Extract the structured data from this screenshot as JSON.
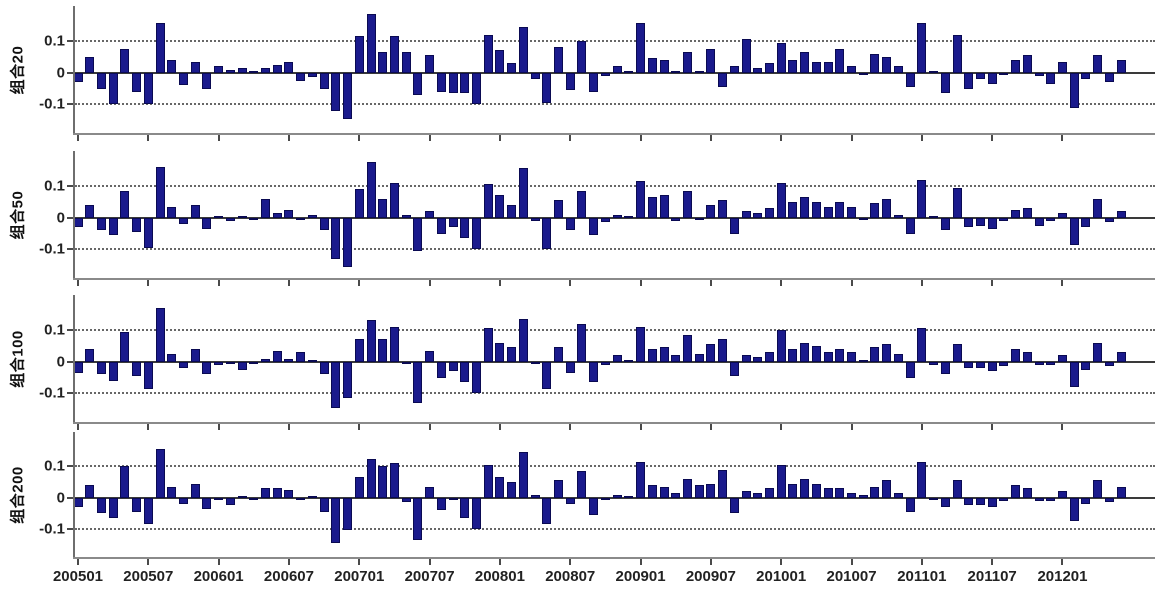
{
  "figure": {
    "background": "#ffffff",
    "bar_fill": "#1a1a8c",
    "bar_edge": "#0a0a52",
    "axis_color": "#6e6e6e",
    "grid_color": "#4d4d4d",
    "text_color": "#222222"
  },
  "x_axis": {
    "tick_labels": [
      "200501",
      "200507",
      "200601",
      "200607",
      "200701",
      "200707",
      "200801",
      "200807",
      "200901",
      "200907",
      "201001",
      "201007",
      "201101",
      "201107",
      "201201"
    ],
    "tick_month_indices": [
      0,
      6,
      12,
      18,
      24,
      30,
      36,
      42,
      48,
      54,
      60,
      66,
      72,
      78,
      84
    ],
    "n_months": 90,
    "start": "200501",
    "end": "201206"
  },
  "y_axis": {
    "tick_labels": [
      "0.1",
      "0",
      "-0.1"
    ],
    "tick_values": [
      0.1,
      0,
      -0.1
    ],
    "gridlines": [
      0.1,
      -0.1
    ],
    "ylim": [
      -0.19,
      0.21
    ]
  },
  "chart_data": [
    {
      "type": "bar",
      "ylabel": "组合20",
      "x_start": "200501",
      "x_step_months": 1,
      "ylim": [
        -0.19,
        0.21
      ],
      "yticks": [
        0.1,
        0,
        -0.1
      ],
      "grid": "dotted at ±0.1",
      "values": [
        -0.03,
        0.05,
        -0.05,
        -0.1,
        0.075,
        -0.06,
        -0.1,
        0.155,
        0.04,
        -0.04,
        0.035,
        -0.05,
        0.02,
        0.01,
        0.015,
        0.005,
        0.015,
        0.025,
        0.035,
        -0.025,
        -0.015,
        -0.05,
        -0.12,
        -0.145,
        0.115,
        0.185,
        0.065,
        0.115,
        0.065,
        -0.07,
        0.055,
        -0.06,
        -0.065,
        -0.065,
        -0.1,
        0.12,
        0.07,
        0.03,
        0.145,
        -0.02,
        -0.095,
        0.08,
        -0.055,
        0.1,
        -0.06,
        -0.01,
        0.02,
        0.005,
        0.155,
        0.045,
        0.04,
        0.005,
        0.065,
        0.005,
        0.075,
        -0.045,
        0.02,
        0.105,
        0.015,
        0.03,
        0.095,
        0.04,
        0.065,
        0.035,
        0.035,
        0.075,
        0.02,
        -0.005,
        0.06,
        0.05,
        0.02,
        -0.045,
        0.155,
        0.005,
        -0.065,
        0.12,
        -0.05,
        -0.02,
        -0.035,
        0.0,
        0.04,
        0.055,
        -0.01,
        -0.035,
        0.035,
        -0.11,
        -0.02,
        0.055,
        -0.03,
        0.04
      ]
    },
    {
      "type": "bar",
      "ylabel": "组合50",
      "x_start": "200501",
      "x_step_months": 1,
      "ylim": [
        -0.19,
        0.21
      ],
      "yticks": [
        0.1,
        0,
        -0.1
      ],
      "grid": "dotted at ±0.1",
      "values": [
        -0.03,
        0.04,
        -0.04,
        -0.055,
        0.085,
        -0.045,
        -0.095,
        0.16,
        0.035,
        -0.02,
        0.04,
        -0.035,
        0.005,
        -0.01,
        0.005,
        0.0,
        0.06,
        0.015,
        0.025,
        -0.005,
        0.01,
        -0.04,
        -0.13,
        -0.155,
        0.09,
        0.175,
        0.06,
        0.11,
        0.01,
        -0.105,
        0.02,
        -0.05,
        -0.03,
        -0.065,
        -0.1,
        0.105,
        0.07,
        0.04,
        0.155,
        -0.01,
        -0.1,
        0.055,
        -0.04,
        0.085,
        -0.055,
        -0.015,
        0.01,
        0.005,
        0.115,
        0.065,
        0.07,
        -0.01,
        0.085,
        -0.005,
        0.04,
        0.055,
        -0.05,
        0.02,
        0.015,
        0.03,
        0.11,
        0.05,
        0.065,
        0.05,
        0.035,
        0.05,
        0.035,
        0.0,
        0.045,
        0.06,
        0.01,
        -0.05,
        0.12,
        0.005,
        -0.04,
        0.095,
        -0.03,
        -0.025,
        -0.035,
        -0.01,
        0.025,
        0.03,
        -0.025,
        -0.01,
        0.015,
        -0.085,
        -0.03,
        0.06,
        -0.015,
        0.02
      ]
    },
    {
      "type": "bar",
      "ylabel": "组合100",
      "x_start": "200501",
      "x_step_months": 1,
      "ylim": [
        -0.19,
        0.21
      ],
      "yticks": [
        0.1,
        0,
        -0.1
      ],
      "grid": "dotted at ±0.1",
      "values": [
        -0.035,
        0.04,
        -0.04,
        -0.06,
        0.095,
        -0.045,
        -0.085,
        0.17,
        0.025,
        -0.02,
        0.04,
        -0.04,
        -0.01,
        -0.005,
        -0.025,
        0.0,
        0.01,
        0.035,
        0.01,
        0.03,
        0.005,
        -0.04,
        -0.145,
        -0.115,
        0.07,
        0.13,
        0.07,
        0.11,
        -0.005,
        -0.13,
        0.035,
        -0.05,
        -0.03,
        -0.065,
        -0.1,
        0.105,
        0.06,
        0.045,
        0.135,
        -0.005,
        -0.085,
        0.045,
        -0.035,
        0.12,
        -0.065,
        -0.01,
        0.02,
        0.005,
        0.11,
        0.04,
        0.045,
        0.02,
        0.085,
        0.025,
        0.055,
        0.07,
        -0.045,
        0.02,
        0.015,
        0.03,
        0.1,
        0.04,
        0.06,
        0.05,
        0.03,
        0.04,
        0.03,
        0.005,
        0.045,
        0.055,
        0.025,
        -0.05,
        0.105,
        -0.01,
        -0.04,
        0.055,
        -0.02,
        -0.02,
        -0.03,
        -0.015,
        0.04,
        0.03,
        -0.01,
        -0.01,
        0.02,
        -0.08,
        -0.025,
        0.06,
        -0.015,
        0.03
      ]
    },
    {
      "type": "bar",
      "ylabel": "组合200",
      "x_start": "200501",
      "x_step_months": 1,
      "ylim": [
        -0.19,
        0.21
      ],
      "yticks": [
        0.1,
        0,
        -0.1
      ],
      "grid": "dotted at ±0.1",
      "values": [
        -0.03,
        0.04,
        -0.05,
        -0.065,
        0.1,
        -0.045,
        -0.085,
        0.155,
        0.035,
        -0.02,
        0.045,
        -0.035,
        0.0,
        -0.025,
        0.005,
        -0.005,
        0.03,
        0.03,
        0.025,
        0.0,
        0.005,
        -0.045,
        -0.145,
        -0.105,
        0.065,
        0.125,
        0.1,
        0.11,
        -0.015,
        -0.135,
        0.035,
        -0.04,
        -0.005,
        -0.065,
        -0.1,
        0.105,
        0.065,
        0.05,
        0.145,
        0.01,
        -0.085,
        0.055,
        -0.02,
        0.085,
        -0.055,
        -0.005,
        0.01,
        0.005,
        0.115,
        0.04,
        0.035,
        0.015,
        0.06,
        0.04,
        0.045,
        0.09,
        -0.05,
        0.02,
        0.015,
        0.03,
        0.105,
        0.045,
        0.06,
        0.045,
        0.03,
        0.03,
        0.015,
        0.01,
        0.035,
        0.055,
        0.015,
        -0.045,
        0.115,
        -0.005,
        -0.03,
        0.055,
        -0.025,
        -0.025,
        -0.03,
        -0.01,
        0.04,
        0.03,
        -0.01,
        -0.01,
        0.02,
        -0.075,
        -0.02,
        0.055,
        -0.015,
        0.035
      ]
    }
  ]
}
